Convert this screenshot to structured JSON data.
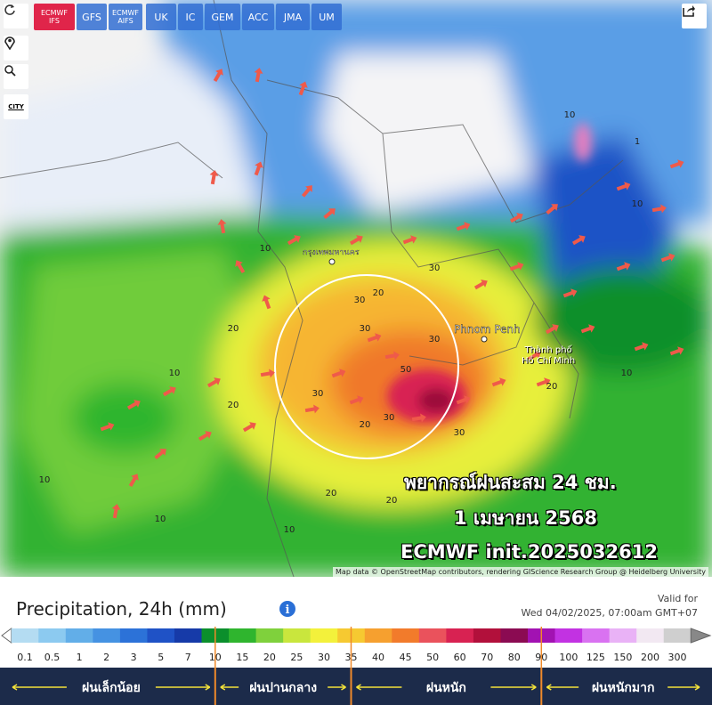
{
  "toolbar": {
    "models": [
      "ECMWF\nIFS",
      "GFS",
      "ECMWF\nAIFS",
      "UK",
      "IC",
      "GEM",
      "ACC",
      "JMA",
      "UM"
    ],
    "city": "CITY"
  },
  "map": {
    "places": [
      "Phnom Penh",
      "Thành phố\nHồ Chí Minh",
      "กรุงเทพมหานคร"
    ],
    "contours": [
      10,
      1,
      10,
      10,
      20,
      30,
      30,
      30,
      30,
      50,
      30,
      30,
      20,
      30,
      20,
      20,
      10,
      10,
      10,
      20,
      10,
      20,
      10,
      20
    ],
    "overlay": [
      "พยากรณ์ฝนสะสม 24 ชม.",
      "1 เมษายน 2568",
      "ECMWF init.2025032612"
    ],
    "attribution": "Map data © OpenStreetMap contributors, rendering GIScience Research Group @ Heidelberg University"
  },
  "legend": {
    "title": "Precipitation, 24h (mm)",
    "valid_label": "Valid for",
    "valid_time": "Wed 04/02/2025, 07:00am GMT+07",
    "scale": [
      {
        "value": 0.1,
        "color": "#b4dcf2"
      },
      {
        "value": 0.5,
        "color": "#8ccaf0"
      },
      {
        "value": 1,
        "color": "#62aee8"
      },
      {
        "value": 2,
        "color": "#4592e2"
      },
      {
        "value": 3,
        "color": "#2c72d8"
      },
      {
        "value": 5,
        "color": "#1f52c6"
      },
      {
        "value": 7,
        "color": "#163aa8"
      },
      {
        "value": 10,
        "color": "#0b8f2c"
      },
      {
        "value": 15,
        "color": "#2fb52e"
      },
      {
        "value": 20,
        "color": "#7fd13c"
      },
      {
        "value": 25,
        "color": "#c9e63d"
      },
      {
        "value": 30,
        "color": "#f3f13b"
      },
      {
        "value": 35,
        "color": "#f6c931"
      },
      {
        "value": 40,
        "color": "#f6a02f"
      },
      {
        "value": 45,
        "color": "#f27b2b"
      },
      {
        "value": 50,
        "color": "#ea525c"
      },
      {
        "value": 60,
        "color": "#d82252"
      },
      {
        "value": 70,
        "color": "#b2103b"
      },
      {
        "value": 80,
        "color": "#8b0b52"
      },
      {
        "value": 90,
        "color": "#a212b2"
      },
      {
        "value": 100,
        "color": "#c232e2"
      },
      {
        "value": 125,
        "color": "#d972f1"
      },
      {
        "value": 150,
        "color": "#e9b2f6"
      },
      {
        "value": 200,
        "color": "#f2e8f2"
      },
      {
        "value": 300,
        "color": "#cfcfcf"
      }
    ],
    "categories": [
      "ฝนเล็กน้อย",
      "ฝนปานกลาง",
      "ฝนหนัก",
      "ฝนหนักมาก"
    ]
  }
}
